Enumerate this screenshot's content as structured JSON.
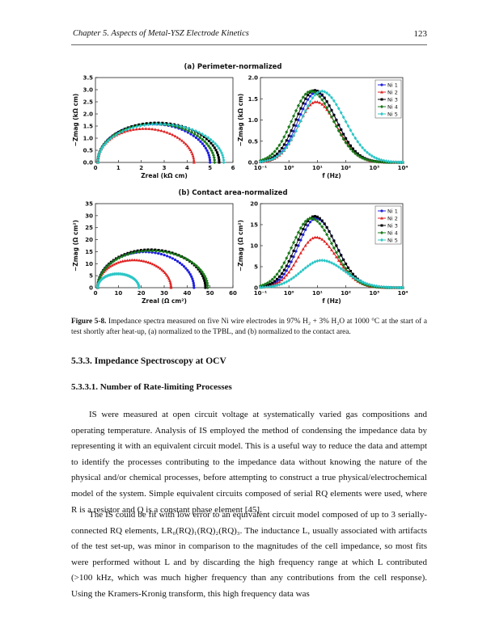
{
  "header": {
    "chapter_title": "Chapter 5. Aspects of Metal-YSZ Electrode Kinetics",
    "page_number": "123"
  },
  "figure": {
    "panel_a_title": "(a) Perimeter-normalized",
    "panel_b_title": "(b) Contact area-normalized",
    "legend": [
      "Ni 1",
      "Ni 2",
      "Ni 3",
      "Ni 4",
      "Ni 5"
    ],
    "series_colors": [
      "#1f1fe0",
      "#e02020",
      "#000000",
      "#1a7a1a",
      "#2cc6c6"
    ],
    "axes": {
      "a_nyquist": {
        "ylabel": "−Zmag (kΩ cm)",
        "xlabel": "Zreal (kΩ cm)",
        "xticks": [
          "0",
          "1",
          "2",
          "3",
          "4",
          "5",
          "6"
        ],
        "yticks": [
          "0.0",
          "0.5",
          "1.0",
          "1.5",
          "2.0",
          "2.5",
          "3.0",
          "3.5"
        ]
      },
      "a_bode": {
        "ylabel": "−Zmag (kΩ cm)",
        "xlabel": "f (Hz)",
        "xticks": [
          "10⁻¹",
          "10⁰",
          "10¹",
          "10²",
          "10³",
          "10⁴"
        ],
        "yticks": [
          "0.0",
          "0.5",
          "1.0",
          "1.5",
          "2.0"
        ]
      },
      "b_nyquist": {
        "ylabel": "−Zmag (Ω cm²)",
        "xlabel": "Zreal (Ω cm²)",
        "xticks": [
          "0",
          "10",
          "20",
          "30",
          "40",
          "50",
          "60"
        ],
        "yticks": [
          "0",
          "5",
          "10",
          "15",
          "20",
          "25",
          "30",
          "35"
        ]
      },
      "b_bode": {
        "ylabel": "−Zmag (Ω cm²)",
        "xlabel": "f (Hz)",
        "xticks": [
          "10⁻¹",
          "10⁰",
          "10¹",
          "10²",
          "10³",
          "10⁴"
        ],
        "yticks": [
          "0",
          "5",
          "10",
          "15",
          "20"
        ]
      }
    },
    "caption_label": "Figure 5-8.",
    "caption_text": " Impedance spectra measured on five Ni wire electrodes in 97% H₂ + 3% H₂O at 1000 °C at the start of a test shortly after heat-up, (a) normalized to the TPBL, and (b) normalized to the contact area."
  },
  "chart_data": [
    {
      "type": "scatter",
      "panel": "a-nyquist",
      "xlabel": "Zreal (kΩ cm)",
      "ylabel": "−Zmag (kΩ cm)",
      "xlim": [
        0,
        6
      ],
      "ylim": [
        0,
        3.5
      ],
      "series": [
        {
          "name": "Ni 1",
          "shape": "arc",
          "x_start": 0.1,
          "x_end": 5.0,
          "peak": 1.65
        },
        {
          "name": "Ni 2",
          "shape": "arc",
          "x_start": 0.1,
          "x_end": 4.3,
          "peak": 1.45
        },
        {
          "name": "Ni 3",
          "shape": "arc",
          "x_start": 0.1,
          "x_end": 5.4,
          "peak": 1.7
        },
        {
          "name": "Ni 4",
          "shape": "arc",
          "x_start": 0.1,
          "x_end": 5.2,
          "peak": 1.65
        },
        {
          "name": "Ni 5",
          "shape": "arc",
          "x_start": 0.1,
          "x_end": 5.6,
          "peak": 1.65
        }
      ]
    },
    {
      "type": "scatter",
      "panel": "a-bode",
      "xlabel": "f (Hz)",
      "ylabel": "−Zmag (kΩ cm)",
      "xscale": "log",
      "xlim": [
        0.1,
        10000
      ],
      "ylim": [
        0,
        2.0
      ],
      "series": [
        {
          "name": "Ni 1",
          "peak_f": 9,
          "peak": 1.65,
          "width": 0.62
        },
        {
          "name": "Ni 2",
          "peak_f": 9,
          "peak": 1.43,
          "width": 0.62
        },
        {
          "name": "Ni 3",
          "peak_f": 8,
          "peak": 1.7,
          "width": 0.64
        },
        {
          "name": "Ni 4",
          "peak_f": 6,
          "peak": 1.68,
          "width": 0.66
        },
        {
          "name": "Ni 5",
          "peak_f": 14,
          "peak": 1.68,
          "width": 0.7
        }
      ]
    },
    {
      "type": "scatter",
      "panel": "b-nyquist",
      "xlabel": "Zreal (Ω cm²)",
      "ylabel": "−Zmag (Ω cm²)",
      "xlim": [
        0,
        60
      ],
      "ylim": [
        0,
        35
      ],
      "series": [
        {
          "name": "Ni 1",
          "shape": "arc",
          "x_start": 1,
          "x_end": 43,
          "peak": 15.5
        },
        {
          "name": "Ni 2",
          "shape": "arc",
          "x_start": 1,
          "x_end": 33,
          "peak": 12
        },
        {
          "name": "Ni 3",
          "shape": "arc",
          "x_start": 1,
          "x_end": 48,
          "peak": 16.5
        },
        {
          "name": "Ni 4",
          "shape": "arc",
          "x_start": 1,
          "x_end": 49,
          "peak": 16
        },
        {
          "name": "Ni 5",
          "shape": "arc",
          "x_start": 1,
          "x_end": 19,
          "peak": 6
        }
      ]
    },
    {
      "type": "scatter",
      "panel": "b-bode",
      "xlabel": "f (Hz)",
      "ylabel": "−Zmag (Ω cm²)",
      "xscale": "log",
      "xlim": [
        0.1,
        10000
      ],
      "ylim": [
        0,
        20
      ],
      "series": [
        {
          "name": "Ni 1",
          "peak_f": 9,
          "peak": 16.5,
          "width": 0.62
        },
        {
          "name": "Ni 2",
          "peak_f": 9,
          "peak": 12,
          "width": 0.62
        },
        {
          "name": "Ni 3",
          "peak_f": 8,
          "peak": 17,
          "width": 0.64
        },
        {
          "name": "Ni 4",
          "peak_f": 6,
          "peak": 16.5,
          "width": 0.66
        },
        {
          "name": "Ni 5",
          "peak_f": 14,
          "peak": 6.5,
          "width": 0.7
        }
      ]
    }
  ],
  "section": {
    "heading": "5.3.3.   Impedance Spectroscopy at OCV",
    "subheading": "5.3.3.1.   Number of Rate-limiting Processes"
  },
  "paragraphs": [
    "IS were measured at open circuit voltage at systematically varied gas compositions and operating temperature. Analysis of IS employed the method of condensing the impedance data by representing it with an equivalent circuit model. This is a useful way to reduce the data and attempt to identify the processes contributing to the impedance data without knowing the nature of the physical and/or chemical processes, before attempting to construct a true physical/electrochemical model of the system. Simple equivalent circuits composed of serial RQ elements were used, where R is a resistor and Q is a constant phase element [45].",
    "The IS could be fit with low error to an equivalent circuit model composed of up to 3 serially-connected RQ elements, LR₀(RQ)₁(RQ)₂(RQ)₃. The inductance L, usually associated with artifacts of the test set-up, was minor in comparison to the magnitudes of the cell impedance, so most fits were performed without L and by discarding the high frequency range at which L contributed (>100 kHz, which was much higher frequency than any contributions from the cell response). Using the Kramers-Kronig transform, this high frequency data was"
  ]
}
